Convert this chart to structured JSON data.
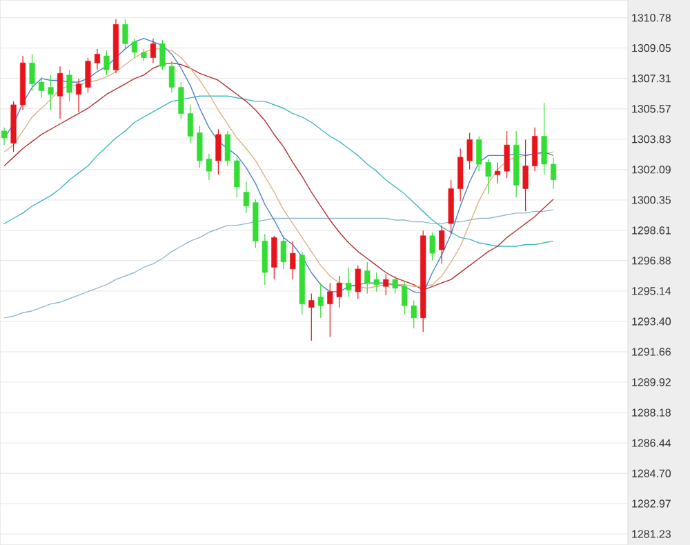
{
  "chart_data": {
    "type": "candlestick",
    "categories": [
      null,
      null,
      null,
      null,
      null,
      null,
      null,
      null,
      null,
      null,
      null,
      null,
      null,
      null,
      null,
      null,
      null,
      null,
      null,
      null,
      null,
      null,
      null,
      null,
      null,
      null,
      null,
      null,
      null,
      null,
      null,
      null,
      null,
      null,
      null,
      null,
      null,
      null,
      null,
      null,
      null,
      null,
      null,
      null,
      null,
      null,
      null,
      null,
      null,
      null,
      null,
      null,
      null,
      null,
      null,
      null,
      null,
      null,
      null,
      null
    ],
    "ohlc": [
      [
        1304.3,
        1304.5,
        1303.5,
        1303.9
      ],
      [
        1303.6,
        1306.0,
        1303.1,
        1305.8
      ],
      [
        1305.8,
        1308.6,
        1305.5,
        1308.2
      ],
      [
        1308.2,
        1308.7,
        1306.6,
        1307.0
      ],
      [
        1307.1,
        1307.4,
        1306.2,
        1306.6
      ],
      [
        1306.8,
        1307.5,
        1305.5,
        1306.4
      ],
      [
        1306.3,
        1308.0,
        1305.0,
        1307.6
      ],
      [
        1307.5,
        1307.8,
        1306.0,
        1306.5
      ],
      [
        1306.4,
        1307.3,
        1305.4,
        1307.0
      ],
      [
        1306.8,
        1308.5,
        1306.5,
        1308.3
      ],
      [
        1308.2,
        1309.0,
        1307.8,
        1308.7
      ],
      [
        1308.6,
        1308.9,
        1307.5,
        1307.8
      ],
      [
        1307.8,
        1310.7,
        1307.6,
        1310.4
      ],
      [
        1310.4,
        1310.7,
        1309.0,
        1309.3
      ],
      [
        1309.4,
        1309.6,
        1308.5,
        1308.8
      ],
      [
        1308.8,
        1309.0,
        1308.3,
        1308.5
      ],
      [
        1308.5,
        1309.6,
        1308.2,
        1309.3
      ],
      [
        1309.3,
        1309.5,
        1307.8,
        1308.0
      ],
      [
        1308.0,
        1308.3,
        1306.5,
        1306.8
      ],
      [
        1306.8,
        1307.1,
        1305.0,
        1305.3
      ],
      [
        1305.3,
        1305.8,
        1303.6,
        1304.0
      ],
      [
        1304.2,
        1304.6,
        1302.2,
        1302.6
      ],
      [
        1302.7,
        1303.0,
        1301.5,
        1302.0
      ],
      [
        1302.6,
        1304.4,
        1301.8,
        1304.1
      ],
      [
        1304.1,
        1304.3,
        1302.3,
        1302.6
      ],
      [
        1302.6,
        1302.8,
        1300.5,
        1301.1
      ],
      [
        1300.8,
        1301.4,
        1299.6,
        1300.0
      ],
      [
        1300.2,
        1300.4,
        1297.6,
        1298.0
      ],
      [
        1298.0,
        1298.4,
        1295.5,
        1296.2
      ],
      [
        1296.5,
        1298.3,
        1295.8,
        1298.2
      ],
      [
        1298.0,
        1298.3,
        1296.4,
        1296.8
      ],
      [
        1296.4,
        1298.0,
        1295.8,
        1297.3
      ],
      [
        1297.2,
        1297.4,
        1293.8,
        1294.4
      ],
      [
        1294.2,
        1295.0,
        1292.3,
        1294.6
      ],
      [
        1294.8,
        1295.6,
        1293.6,
        1294.3
      ],
      [
        1294.4,
        1295.6,
        1292.5,
        1295.1
      ],
      [
        1294.8,
        1296.0,
        1294.2,
        1295.6
      ],
      [
        1295.6,
        1296.5,
        1294.8,
        1295.2
      ],
      [
        1295.1,
        1296.6,
        1294.7,
        1296.4
      ],
      [
        1296.3,
        1296.8,
        1295.0,
        1295.6
      ],
      [
        1295.8,
        1296.2,
        1295.1,
        1295.5
      ],
      [
        1295.4,
        1296.1,
        1294.9,
        1295.8
      ],
      [
        1295.8,
        1296.0,
        1295.0,
        1295.3
      ],
      [
        1295.4,
        1295.7,
        1293.8,
        1294.3
      ],
      [
        1294.3,
        1294.6,
        1293.0,
        1293.6
      ],
      [
        1293.6,
        1298.6,
        1292.8,
        1298.3
      ],
      [
        1298.3,
        1298.5,
        1296.9,
        1297.3
      ],
      [
        1297.5,
        1298.9,
        1296.7,
        1298.6
      ],
      [
        1299.0,
        1301.5,
        1298.4,
        1301.0
      ],
      [
        1301.0,
        1303.3,
        1300.3,
        1302.8
      ],
      [
        1302.6,
        1304.2,
        1302.1,
        1303.8
      ],
      [
        1303.8,
        1304.0,
        1302.0,
        1302.4
      ],
      [
        1302.5,
        1302.7,
        1300.7,
        1301.7
      ],
      [
        1301.8,
        1302.5,
        1301.3,
        1302.0
      ],
      [
        1302.0,
        1304.3,
        1301.6,
        1303.5
      ],
      [
        1303.5,
        1304.3,
        1300.5,
        1301.2
      ],
      [
        1301.0,
        1303.8,
        1299.7,
        1302.3
      ],
      [
        1302.3,
        1304.5,
        1302.0,
        1304.0
      ],
      [
        1304.0,
        1305.9,
        1301.8,
        1302.4
      ],
      [
        1302.4,
        1302.8,
        1301.0,
        1301.5
      ]
    ],
    "colors": [
      "#33dd33",
      "#e8141c",
      "#e8141c",
      "#33dd33",
      "#33dd33",
      "#33dd33",
      "#e8141c",
      "#33dd33",
      "#e8141c",
      "#e8141c",
      "#e8141c",
      "#33dd33",
      "#e8141c",
      "#33dd33",
      "#33dd33",
      "#33dd33",
      "#e8141c",
      "#33dd33",
      "#33dd33",
      "#33dd33",
      "#33dd33",
      "#33dd33",
      "#33dd33",
      "#e8141c",
      "#33dd33",
      "#33dd33",
      "#33dd33",
      "#33dd33",
      "#33dd33",
      "#e8141c",
      "#33dd33",
      "#e8141c",
      "#33dd33",
      "#e8141c",
      "#33dd33",
      "#e8141c",
      "#e8141c",
      "#33dd33",
      "#e8141c",
      "#33dd33",
      "#33dd33",
      "#e8141c",
      "#33dd33",
      "#33dd33",
      "#33dd33",
      "#e8141c",
      "#33dd33",
      "#e8141c",
      "#e8141c",
      "#e8141c",
      "#e8141c",
      "#33dd33",
      "#33dd33",
      "#e8141c",
      "#e8141c",
      "#33dd33",
      "#e8141c",
      "#e8141c",
      "#33dd33",
      "#33dd33"
    ],
    "series": [
      {
        "type": "line",
        "color": "#90b8d0",
        "values": [
          1293.6,
          1293.7,
          1293.9,
          1294.0,
          1294.2,
          1294.4,
          1294.5,
          1294.7,
          1294.9,
          1295.1,
          1295.3,
          1295.5,
          1295.8,
          1296.0,
          1296.2,
          1296.5,
          1296.7,
          1297.0,
          1297.4,
          1297.7,
          1298.0,
          1298.2,
          1298.5,
          1298.7,
          1298.9,
          1298.9,
          1299.0,
          1299.1,
          1299.2,
          1299.3,
          1299.3,
          1299.3,
          1299.3,
          1299.3,
          1299.3,
          1299.3,
          1299.3,
          1299.3,
          1299.3,
          1299.3,
          1299.3,
          1299.3,
          1299.2,
          1299.2,
          1299.1,
          1299.1,
          1299.0,
          1299.0,
          1299.1,
          1299.1,
          1299.2,
          1299.3,
          1299.3,
          1299.4,
          1299.5,
          1299.6,
          1299.6,
          1299.7,
          1299.7,
          1299.8
        ]
      },
      {
        "type": "line",
        "color": "#40b8c0",
        "values": [
          1299.0,
          1299.3,
          1299.6,
          1300.0,
          1300.3,
          1300.6,
          1301.0,
          1301.5,
          1301.9,
          1302.3,
          1302.9,
          1303.4,
          1303.9,
          1304.3,
          1304.8,
          1305.1,
          1305.4,
          1305.7,
          1306.0,
          1306.1,
          1306.2,
          1306.3,
          1306.3,
          1306.3,
          1306.3,
          1306.2,
          1306.1,
          1306.0,
          1306.0,
          1305.8,
          1305.6,
          1305.3,
          1305.1,
          1304.8,
          1304.4,
          1304.0,
          1303.7,
          1303.3,
          1302.9,
          1302.4,
          1302.0,
          1301.5,
          1301.1,
          1300.7,
          1300.2,
          1299.7,
          1299.2,
          1298.8,
          1298.5,
          1298.2,
          1298.1,
          1297.9,
          1297.8,
          1297.7,
          1297.7,
          1297.7,
          1297.8,
          1297.8,
          1297.9,
          1298.0
        ]
      },
      {
        "type": "line",
        "color": "#b03030",
        "values": [
          1302.3,
          1302.8,
          1303.3,
          1303.7,
          1304.1,
          1304.4,
          1304.7,
          1305.0,
          1305.3,
          1305.6,
          1306.0,
          1306.4,
          1306.7,
          1307.0,
          1307.3,
          1307.5,
          1307.9,
          1308.1,
          1308.2,
          1308.1,
          1307.9,
          1307.6,
          1307.4,
          1307.2,
          1306.8,
          1306.4,
          1306.0,
          1305.5,
          1304.9,
          1304.1,
          1303.4,
          1302.5,
          1301.7,
          1300.8,
          1300.0,
          1299.2,
          1298.5,
          1297.9,
          1297.4,
          1297.0,
          1296.6,
          1296.2,
          1295.9,
          1295.7,
          1295.5,
          1295.2,
          1295.4,
          1295.6,
          1295.8,
          1296.2,
          1296.6,
          1297.0,
          1297.4,
          1297.7,
          1298.2,
          1298.6,
          1299.0,
          1299.4,
          1299.9,
          1300.4
        ]
      },
      {
        "type": "line",
        "color": "#e0b080",
        "values": [
          1303.1,
          1303.5,
          1304.3,
          1305.1,
          1305.6,
          1306.1,
          1306.7,
          1306.9,
          1306.9,
          1307.1,
          1307.2,
          1307.4,
          1307.7,
          1308.1,
          1308.5,
          1308.8,
          1309.0,
          1309.0,
          1308.9,
          1308.5,
          1307.9,
          1307.2,
          1306.4,
          1305.5,
          1304.7,
          1303.9,
          1303.3,
          1302.6,
          1301.7,
          1300.8,
          1299.8,
          1299.0,
          1298.2,
          1297.4,
          1296.6,
          1296.0,
          1295.6,
          1295.5,
          1295.4,
          1295.3,
          1295.4,
          1295.5,
          1295.5,
          1295.5,
          1295.4,
          1295.4,
          1295.5,
          1296.0,
          1296.8,
          1297.7,
          1299.0,
          1300.3,
          1301.3,
          1302.1,
          1302.6,
          1302.8,
          1302.9,
          1303.0,
          1303.0,
          1303.1
        ]
      },
      {
        "type": "line",
        "color": "#4a7fd0",
        "values": [
          1303.9,
          1304.7,
          1305.9,
          1306.8,
          1307.3,
          1307.2,
          1307.2,
          1307.1,
          1307.1,
          1307.3,
          1307.7,
          1308.0,
          1308.5,
          1309.0,
          1309.4,
          1309.6,
          1309.4,
          1309.2,
          1308.7,
          1307.9,
          1306.9,
          1305.6,
          1304.5,
          1303.7,
          1303.3,
          1302.9,
          1302.2,
          1301.3,
          1300.1,
          1299.2,
          1298.2,
          1297.8,
          1297.1,
          1296.2,
          1295.5,
          1295.1,
          1295.1,
          1295.4,
          1295.5,
          1295.6,
          1295.6,
          1295.6,
          1295.5,
          1295.4,
          1295.1,
          1295.0,
          1296.2,
          1297.2,
          1298.4,
          1300.0,
          1301.4,
          1302.5,
          1302.9,
          1302.9,
          1302.9,
          1303.0,
          1302.9,
          1303.0,
          1303.1,
          1302.9
        ]
      }
    ],
    "ylim": [
      1280.6,
      1311.8
    ],
    "yticks": [
      1281.23,
      1282.97,
      {
        "value": 1284.7,
        "label": "1284.70"
      },
      1286.44,
      1288.18,
      1289.92,
      1291.66,
      {
        "value": 1293.4,
        "label": "1293.40"
      },
      1295.14,
      1296.88,
      1298.61,
      1300.35,
      1302.09,
      1303.83,
      1305.57,
      1307.31,
      1309.05,
      1310.78
    ],
    "grid": "y",
    "tick_labels": "y"
  }
}
